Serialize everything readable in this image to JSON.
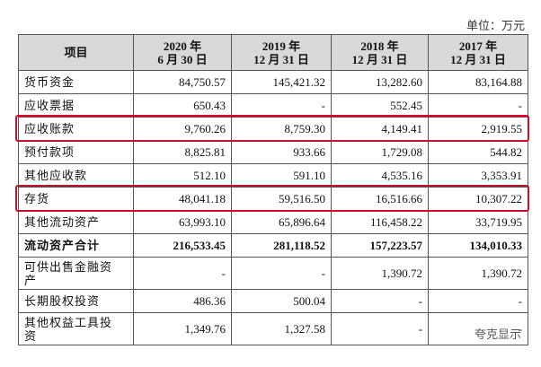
{
  "unit": "单位：万元",
  "table": {
    "header": [
      [
        "项目"
      ],
      [
        "2020 年",
        "6 月 30 日"
      ],
      [
        "2019 年",
        "12 月 31 日"
      ],
      [
        "2018 年",
        "12 月 31 日"
      ],
      [
        "2017 年",
        "12 月 31 日"
      ]
    ],
    "rows": [
      {
        "label": [
          "货币资金"
        ],
        "values": [
          "84,750.57",
          "145,421.32",
          "13,282.60",
          "83,164.88"
        ]
      },
      {
        "label": [
          "应收票据"
        ],
        "values": [
          "650.43",
          "-",
          "552.45",
          "-"
        ]
      },
      {
        "label": [
          "应收账款"
        ],
        "values": [
          "9,760.26",
          "8,759.30",
          "4,149.41",
          "2,919.55"
        ],
        "highlight": true
      },
      {
        "label": [
          "预付款项"
        ],
        "values": [
          "8,825.81",
          "933.66",
          "1,729.08",
          "544.82"
        ]
      },
      {
        "label": [
          "其他应收款"
        ],
        "values": [
          "512.10",
          "591.10",
          "4,535.16",
          "3,353.91"
        ]
      },
      {
        "label": [
          "存货"
        ],
        "values": [
          "48,041.18",
          "59,516.50",
          "16,516.66",
          "10,307.22"
        ],
        "highlight": true
      },
      {
        "label": [
          "其他流动资产"
        ],
        "values": [
          "63,993.10",
          "65,896.64",
          "116,458.22",
          "33,719.95"
        ]
      },
      {
        "label": [
          "流动资产合计"
        ],
        "values": [
          "216,533.45",
          "281,118.52",
          "157,223.57",
          "134,010.33"
        ],
        "bold": true
      },
      {
        "label": [
          "可供出售金融资",
          "产"
        ],
        "values": [
          "-",
          "-",
          "1,390.72",
          "1,390.72"
        ]
      },
      {
        "label": [
          "长期股权投资"
        ],
        "values": [
          "486.36",
          "500.04",
          "-",
          "-"
        ]
      },
      {
        "label": [
          "其他权益工具投",
          "资"
        ],
        "values": [
          "1,349.76",
          "1,327.58",
          "-",
          "-"
        ]
      }
    ]
  },
  "watermark": "夸克显示"
}
